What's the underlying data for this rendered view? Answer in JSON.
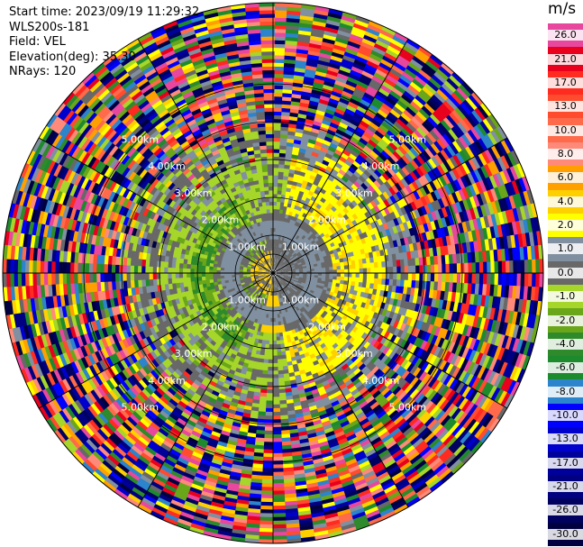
{
  "header": {
    "start_time": "Start time: 2023/09/19 11:29:32",
    "instrument": "WLS200s-181",
    "field": "Field: VEL",
    "elevation": "Elevation(deg): 35.30",
    "nrays": "NRays: 120"
  },
  "colorbar": {
    "unit": "m/s",
    "bins": [
      {
        "label": "26.0",
        "color": "#e8479e"
      },
      {
        "label": "21.0",
        "color": "#e8001d"
      },
      {
        "label": "17.0",
        "color": "#ff2a20"
      },
      {
        "label": "13.0",
        "color": "#ff4b2e"
      },
      {
        "label": "10.0",
        "color": "#ff6a4a"
      },
      {
        "label": "8.0",
        "color": "#ff8a7a"
      },
      {
        "label": "6.0",
        "color": "#ffa000"
      },
      {
        "label": "4.0",
        "color": "#ffd000"
      },
      {
        "label": "2.0",
        "color": "#ffff00"
      },
      {
        "label": "1.0",
        "color": "#8090a0"
      },
      {
        "label": "0.0",
        "color": "#686868"
      },
      {
        "label": "-1.0",
        "color": "#a6d62a"
      },
      {
        "label": "-2.0",
        "color": "#6aa61a"
      },
      {
        "label": "-4.0",
        "color": "#2e8a2a"
      },
      {
        "label": "-6.0",
        "color": "#1e8a2e"
      },
      {
        "label": "-8.0",
        "color": "#2c84cc"
      },
      {
        "label": "-10.0",
        "color": "#0000ff"
      },
      {
        "label": "-13.0",
        "color": "#0000cc"
      },
      {
        "label": "-17.0",
        "color": "#00009a"
      },
      {
        "label": "-21.0",
        "color": "#000080"
      },
      {
        "label": "-26.0",
        "color": "#000060"
      },
      {
        "label": "-30.0",
        "color": "#000040"
      }
    ]
  },
  "range_rings": [
    {
      "label": "1.00km"
    },
    {
      "label": "2.00km"
    },
    {
      "label": "3.00km"
    },
    {
      "label": "4.00km"
    },
    {
      "label": "5.00km"
    }
  ]
}
